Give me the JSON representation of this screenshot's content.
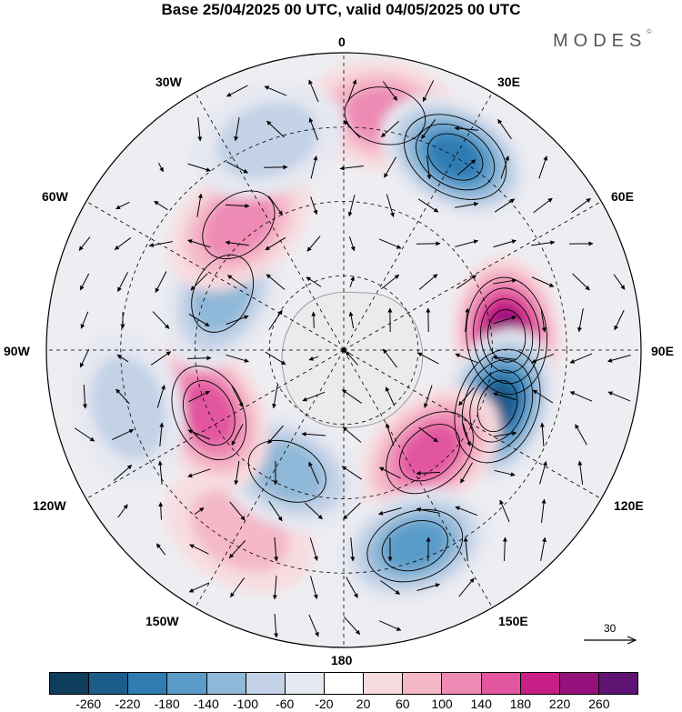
{
  "title": "Base 25/04/2025 00 UTC, valid 04/05/2025 00 UTC",
  "brand": {
    "name": "MODES",
    "mark": "©"
  },
  "longitude_labels": {
    "top": "0",
    "bottom": "180",
    "left": "90W",
    "right": "90E",
    "nw1": "30W",
    "nw2": "60W",
    "ne1": "30E",
    "ne2": "60E",
    "sw1": "120W",
    "sw2": "150W",
    "se1": "120E",
    "se2": "150E"
  },
  "reference_vector": {
    "label": "30"
  },
  "colorbar": {
    "colors": [
      "#0f3d5c",
      "#1b5c8a",
      "#2f7cb3",
      "#5a9cc9",
      "#90b8d8",
      "#c3d2e6",
      "#e6e8f1",
      "#ffffff",
      "#f7dcdf",
      "#f4b8c8",
      "#ee8bb5",
      "#e2559f",
      "#c71f85",
      "#96107b",
      "#5f1473"
    ],
    "ticks": [
      "-260",
      "-220",
      "-180",
      "-140",
      "-100",
      "-60",
      "-20",
      "20",
      "60",
      "100",
      "140",
      "180",
      "220",
      "260"
    ]
  },
  "map_data": {
    "projection": "south polar stereographic",
    "anomalies": [
      {
        "lon": 10,
        "colat": 0.8,
        "value": 150
      },
      {
        "lon": 30,
        "colat": 0.75,
        "value": -230
      },
      {
        "lon": 85,
        "colat": 0.55,
        "value": 270
      },
      {
        "lon": 110,
        "colat": 0.55,
        "value": -260
      },
      {
        "lon": 140,
        "colat": 0.45,
        "value": 160
      },
      {
        "lon": 160,
        "colat": 0.7,
        "value": -170
      },
      {
        "lon": -150,
        "colat": 0.7,
        "value": 90
      },
      {
        "lon": -155,
        "colat": 0.45,
        "value": -150
      },
      {
        "lon": -115,
        "colat": 0.5,
        "value": 190
      },
      {
        "lon": -105,
        "colat": 0.75,
        "value": -80
      },
      {
        "lon": -65,
        "colat": 0.45,
        "value": -150
      },
      {
        "lon": -40,
        "colat": 0.55,
        "value": 130
      },
      {
        "lon": -20,
        "colat": 0.75,
        "value": -90
      }
    ]
  }
}
